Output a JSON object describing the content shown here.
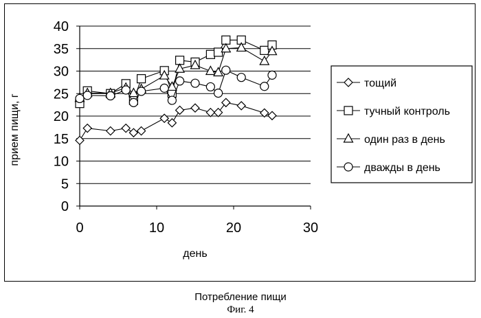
{
  "chart_data": {
    "type": "line",
    "title": "",
    "xlabel": "день",
    "ylabel": "прием пищи, г",
    "xlim": [
      0,
      30
    ],
    "ylim": [
      0,
      40
    ],
    "xticks": [
      0,
      10,
      20,
      30
    ],
    "yticks": [
      0,
      5,
      10,
      15,
      20,
      25,
      30,
      35,
      40
    ],
    "grid": "horizontal",
    "legend_position": "right",
    "series": [
      {
        "name": "тощий",
        "marker": "diamond",
        "x": [
          0,
          1,
          4,
          6,
          7,
          8,
          11,
          12,
          13,
          15,
          17,
          18,
          19,
          21,
          24,
          25
        ],
        "y": [
          14.6,
          17.3,
          16.7,
          17.3,
          16.3,
          16.7,
          19.5,
          18.5,
          21.3,
          21.8,
          20.8,
          20.8,
          23.0,
          22.3,
          20.7,
          20.1
        ]
      },
      {
        "name": "тучный контроль",
        "marker": "square",
        "x": [
          0,
          1,
          4,
          6,
          7,
          8,
          11,
          12,
          13,
          15,
          17,
          18,
          19,
          21,
          24,
          25
        ],
        "y": [
          22.8,
          25.6,
          25.0,
          27.2,
          23.5,
          28.3,
          30.1,
          25.1,
          32.4,
          32.0,
          33.7,
          34.2,
          36.9,
          36.9,
          34.6,
          35.8
        ]
      },
      {
        "name": "один раз в день",
        "marker": "triangle",
        "x": [
          0,
          1,
          4,
          6,
          7,
          8,
          11,
          12,
          13,
          15,
          17,
          18,
          19,
          21,
          24,
          25
        ],
        "y": [
          24.0,
          25.1,
          25.1,
          26.3,
          25.1,
          26.0,
          29.0,
          26.5,
          30.5,
          31.3,
          30.0,
          29.7,
          35.0,
          35.2,
          32.2,
          34.4
        ]
      },
      {
        "name": "дважды в день",
        "marker": "circle",
        "x": [
          0,
          1,
          4,
          6,
          7,
          8,
          11,
          12,
          13,
          15,
          17,
          18,
          19,
          21,
          24,
          25
        ],
        "y": [
          23.9,
          24.6,
          24.5,
          25.8,
          23.0,
          25.5,
          26.2,
          23.5,
          27.8,
          27.3,
          26.5,
          25.1,
          30.2,
          28.6,
          26.6,
          29.1
        ]
      }
    ]
  },
  "captions": {
    "main": "Потребление пищи",
    "figure": "Фиг. 4"
  }
}
